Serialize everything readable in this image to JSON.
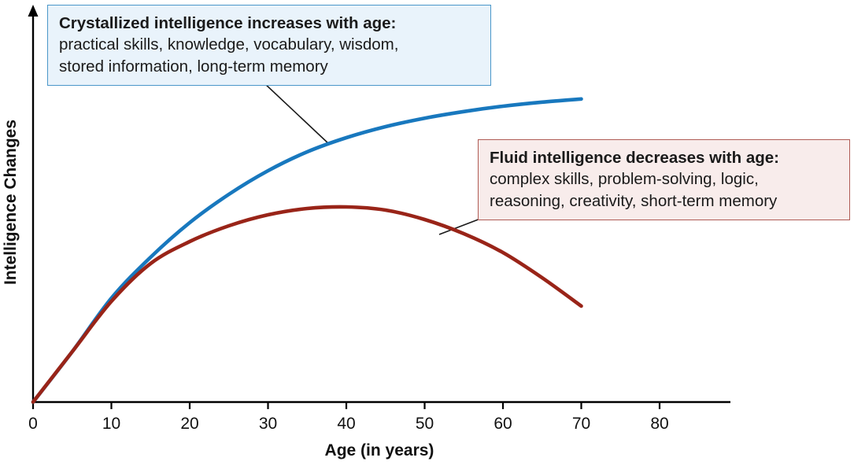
{
  "chart_data": {
    "type": "line",
    "title": "",
    "xlabel": "Age (in years)",
    "ylabel": "Intelligence Changes",
    "x_ticks": [
      0,
      10,
      20,
      30,
      40,
      50,
      60,
      70,
      80
    ],
    "xlim": [
      0,
      88
    ],
    "ylim": [
      0,
      110
    ],
    "grid": false,
    "legend_position": "none",
    "series": [
      {
        "id": "crystallized",
        "name": "Crystallized intelligence",
        "color": "#1878be",
        "x": [
          0,
          5,
          10,
          15,
          20,
          25,
          30,
          35,
          40,
          45,
          50,
          55,
          60,
          65,
          70
        ],
        "values": [
          0,
          16,
          33,
          46,
          57,
          66,
          73.5,
          79.5,
          84,
          87.5,
          90.2,
          92.3,
          94,
          95.3,
          96.3
        ]
      },
      {
        "id": "fluid",
        "name": "Fluid intelligence",
        "color": "#992418",
        "x": [
          0,
          5,
          10,
          15,
          20,
          25,
          30,
          35,
          40,
          45,
          50,
          55,
          60,
          65,
          70
        ],
        "values": [
          0,
          16,
          32,
          44,
          51,
          56,
          59.5,
          61.5,
          62,
          61,
          58,
          53.5,
          47.5,
          39.5,
          30.5
        ]
      }
    ],
    "annotations": [
      {
        "id": "crystallized",
        "title": "Crystallized intelligence increases with age:",
        "body": "practical skills, knowledge, vocabulary, wisdom,\nstored information, long-term memory",
        "bg": "#e9f3fb",
        "border": "#4a97c9"
      },
      {
        "id": "fluid",
        "title": "Fluid intelligence decreases with age:",
        "body": "complex skills, problem-solving, logic,\nreasoning, creativity, short-term memory",
        "bg": "#f8eceb",
        "border": "#b05c55"
      }
    ]
  }
}
